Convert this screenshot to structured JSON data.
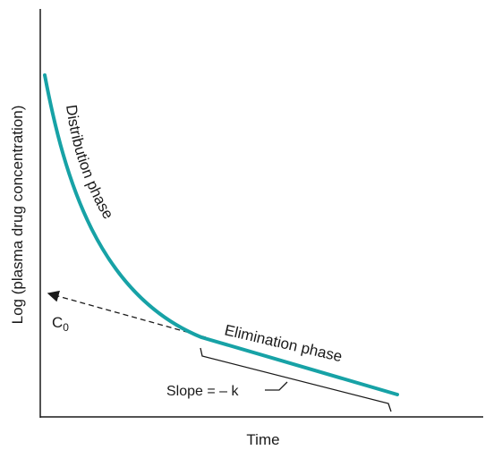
{
  "diagram": {
    "xlabel": "Time",
    "ylabel": "Log (plasma drug concentration)",
    "distribution_label": "Distribution phase",
    "elimination_label": "Elimination phase",
    "c0_base": "C",
    "c0_sub": "0",
    "slope_label": "Slope = – k"
  },
  "colors": {
    "curve": "#17a2a6",
    "axis": "#1a1a1a",
    "extrapolation": "#1a1a1a",
    "text": "#1a1a1a"
  }
}
